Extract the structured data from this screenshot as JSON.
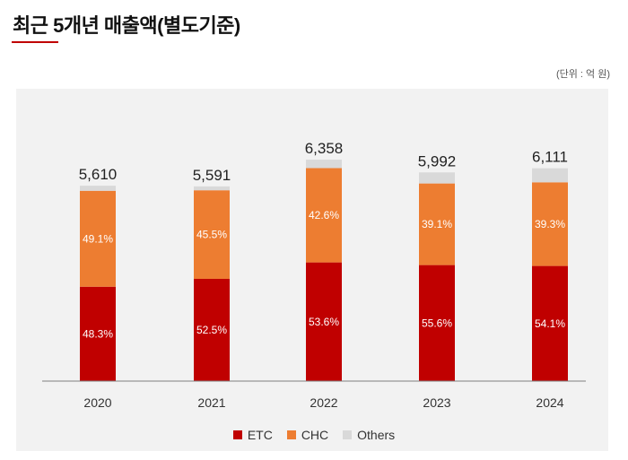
{
  "header": {
    "title": "최근 5개년 매출액(별도기준)",
    "unit": "(단위 : 억 원)"
  },
  "colors": {
    "accent": "#c00000",
    "ETC": "#c00000",
    "CHC": "#ed7d31",
    "Others": "#d9d9d9",
    "axis": "#808080"
  },
  "legend": [
    {
      "key": "ETC",
      "label": "ETC"
    },
    {
      "key": "CHC",
      "label": "CHC"
    },
    {
      "key": "Others",
      "label": "Others"
    }
  ],
  "chart_data": {
    "type": "bar",
    "stacked": true,
    "title": "최근 5개년 매출액(별도기준)",
    "unit": "억 원",
    "categories": [
      "2020",
      "2021",
      "2022",
      "2023",
      "2024"
    ],
    "totals": [
      5610,
      5591,
      6358,
      5992,
      6111
    ],
    "total_labels": [
      "5,610",
      "5,591",
      "6,358",
      "5,992",
      "6,111"
    ],
    "series": [
      {
        "name": "ETC",
        "share_percent": [
          48.3,
          52.5,
          53.6,
          55.6,
          54.1
        ],
        "labels": [
          "48.3%",
          "52.5%",
          "53.6%",
          "55.6%",
          "54.1%"
        ]
      },
      {
        "name": "CHC",
        "share_percent": [
          49.1,
          45.5,
          42.6,
          39.1,
          39.3
        ],
        "labels": [
          "49.1%",
          "45.5%",
          "42.6%",
          "39.1%",
          "39.3%"
        ]
      },
      {
        "name": "Others",
        "share_percent": [
          2.6,
          2.0,
          3.8,
          5.3,
          6.6
        ],
        "labels": []
      }
    ],
    "ylim": [
      0,
      7000
    ],
    "legend_position": "bottom-center"
  }
}
